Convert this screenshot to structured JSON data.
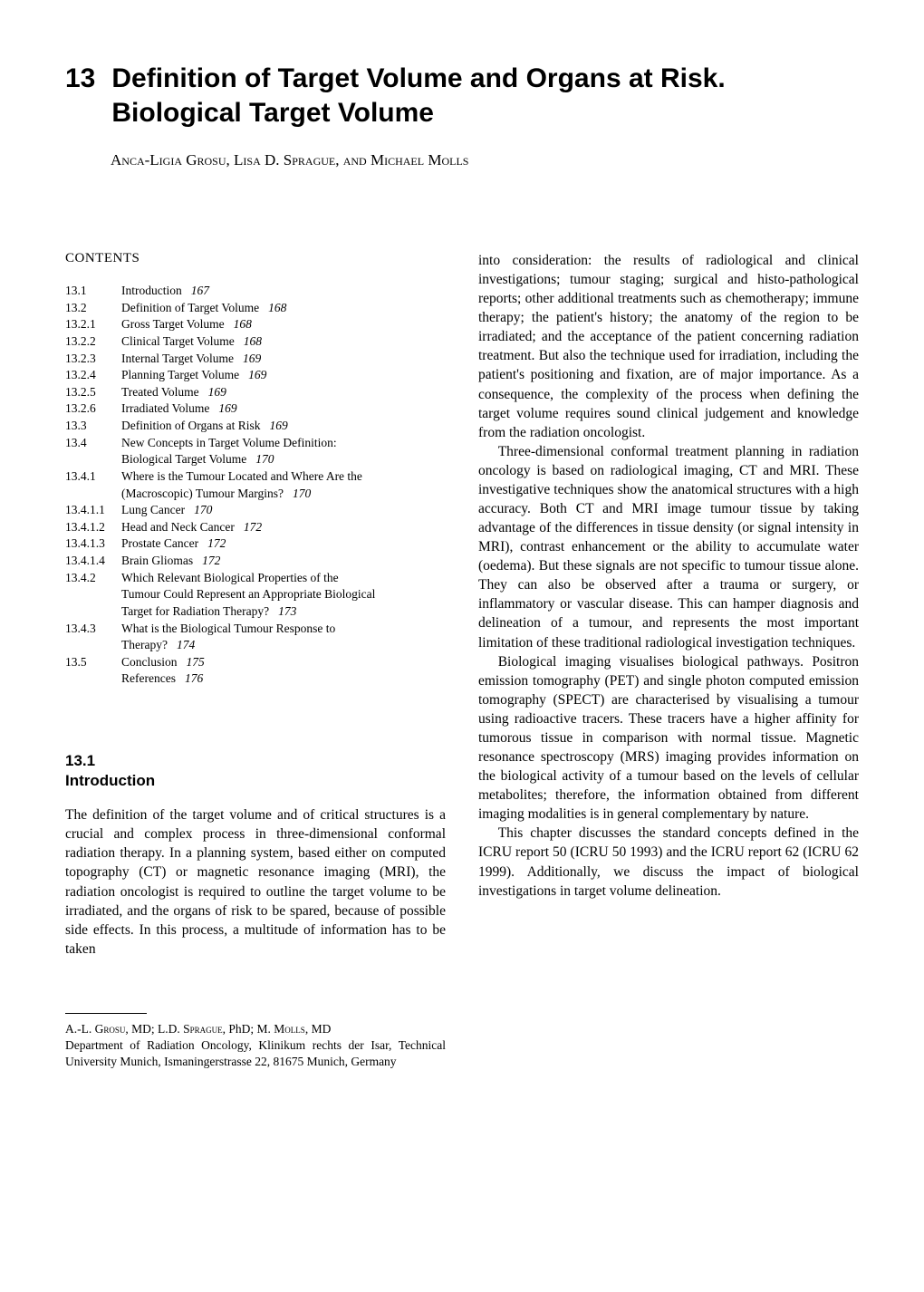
{
  "chapter": {
    "number": "13",
    "title": "Definition of Target Volume and Organs at Risk. Biological Target Volume"
  },
  "authors": "Anca-Ligia Grosu, Lisa D. Sprague, and Michael Molls",
  "contents_heading": "CONTENTS",
  "toc": [
    {
      "num": "13.1",
      "label": "Introduction",
      "page": "167"
    },
    {
      "num": "13.2",
      "label": "Definition of Target Volume",
      "page": "168"
    },
    {
      "num": "13.2.1",
      "label": "Gross Target Volume",
      "page": "168"
    },
    {
      "num": "13.2.2",
      "label": "Clinical Target Volume",
      "page": "168"
    },
    {
      "num": "13.2.3",
      "label": "Internal Target Volume",
      "page": "169"
    },
    {
      "num": "13.2.4",
      "label": "Planning Target Volume",
      "page": "169"
    },
    {
      "num": "13.2.5",
      "label": "Treated Volume",
      "page": "169"
    },
    {
      "num": "13.2.6",
      "label": "Irradiated Volume",
      "page": "169"
    },
    {
      "num": "13.3",
      "label": "Definition of Organs at Risk",
      "page": "169"
    },
    {
      "num": "13.4",
      "label": "New Concepts in Target Volume Definition: Biological Target Volume",
      "page": "170",
      "multiline": true,
      "line1": "New Concepts in Target Volume Definition:",
      "line2": "Biological Target Volume"
    },
    {
      "num": "13.4.1",
      "label": "Where is the Tumour Located and Where Are the (Macroscopic) Tumour Margins?",
      "page": "170",
      "multiline": true,
      "line1": "Where is the Tumour Located and Where Are the",
      "line2": "(Macroscopic) Tumour Margins?"
    },
    {
      "num": "13.4.1.1",
      "label": "Lung Cancer",
      "page": "170"
    },
    {
      "num": "13.4.1.2",
      "label": "Head and Neck Cancer",
      "page": "172"
    },
    {
      "num": "13.4.1.3",
      "label": "Prostate Cancer",
      "page": "172"
    },
    {
      "num": "13.4.1.4",
      "label": "Brain Gliomas",
      "page": "172"
    },
    {
      "num": "13.4.2",
      "label": "Which Relevant Biological Properties of the Tumour Could Represent an Appropriate Biological Target for Radiation Therapy?",
      "page": "173",
      "multiline": true,
      "line1": "Which Relevant Biological Properties of the",
      "line2": "Tumour Could Represent an Appropriate Biological",
      "line3": "Target for Radiation Therapy?"
    },
    {
      "num": "13.4.3",
      "label": "What is the Biological Tumour Response to Therapy?",
      "page": "174",
      "multiline": true,
      "line1": "What is the Biological Tumour Response to",
      "line2": "Therapy?"
    },
    {
      "num": "13.5",
      "label": "Conclusion",
      "page": "175"
    },
    {
      "num": "",
      "label": "References",
      "page": "176"
    }
  ],
  "section": {
    "number": "13.1",
    "title": "Introduction"
  },
  "left_paragraphs": {
    "p1": "The definition of the target volume and of critical structures is a crucial and complex process in three-dimensional conformal radiation therapy. In a planning system, based either on computed topography (CT) or magnetic resonance imaging (MRI), the radiation oncologist is required to outline the target volume to be irradiated, and the organs of risk to be spared, because of possible side effects. In this process, a multitude of information has to be taken"
  },
  "right_paragraphs": {
    "p1": "into consideration: the results of radiological and clinical investigations; tumour staging; surgical and histo-pathological reports; other additional treatments such as chemotherapy; immune therapy; the patient's history; the anatomy of the region to be irradiated; and the acceptance of the patient concerning radiation treatment. But also the technique used for irradiation, including the patient's positioning and fixation, are of major importance. As a consequence, the complexity of the process when defining the target volume requires sound clinical judgement and knowledge from the radiation oncologist.",
    "p2": "Three-dimensional conformal treatment planning in radiation oncology is based on radiological imaging, CT and MRI. These investigative techniques show the anatomical structures with a high accuracy. Both CT and MRI image tumour tissue by taking advantage of the differences in tissue density (or signal intensity in MRI), contrast enhancement or the ability to accumulate water (oedema). But these signals are not specific to tumour tissue alone. They can also be observed after a trauma or surgery, or inflammatory or vascular disease. This can hamper diagnosis and delineation of a tumour, and represents the most important limitation of these traditional radiological investigation techniques.",
    "p3": "Biological imaging visualises biological pathways. Positron emission tomography (PET) and single photon computed emission tomography (SPECT) are characterised by visualising a tumour using radioactive tracers. These tracers have a higher affinity for tumorous tissue in comparison with normal tissue. Magnetic resonance spectroscopy (MRS) imaging provides information on the biological activity of a tumour based on the levels of cellular metabolites; therefore, the information obtained from different imaging modalities is in general complementary by nature.",
    "p4": "This chapter discusses the standard concepts defined in the ICRU report 50 (ICRU 50 1993) and the ICRU report 62 (ICRU 62 1999). Additionally, we discuss the impact of biological investigations in target volume delineation."
  },
  "footnote": {
    "line1a": "A.-L. Grosu",
    "line1b": ", MD; ",
    "line1c": "L.D. Sprague",
    "line1d": ", PhD; ",
    "line1e": "M. Molls",
    "line1f": ", MD",
    "line2": "Department of Radiation Oncology, Klinikum rechts der Isar, Technical University Munich, Ismaningerstrasse 22, 81675 Munich, Germany"
  }
}
